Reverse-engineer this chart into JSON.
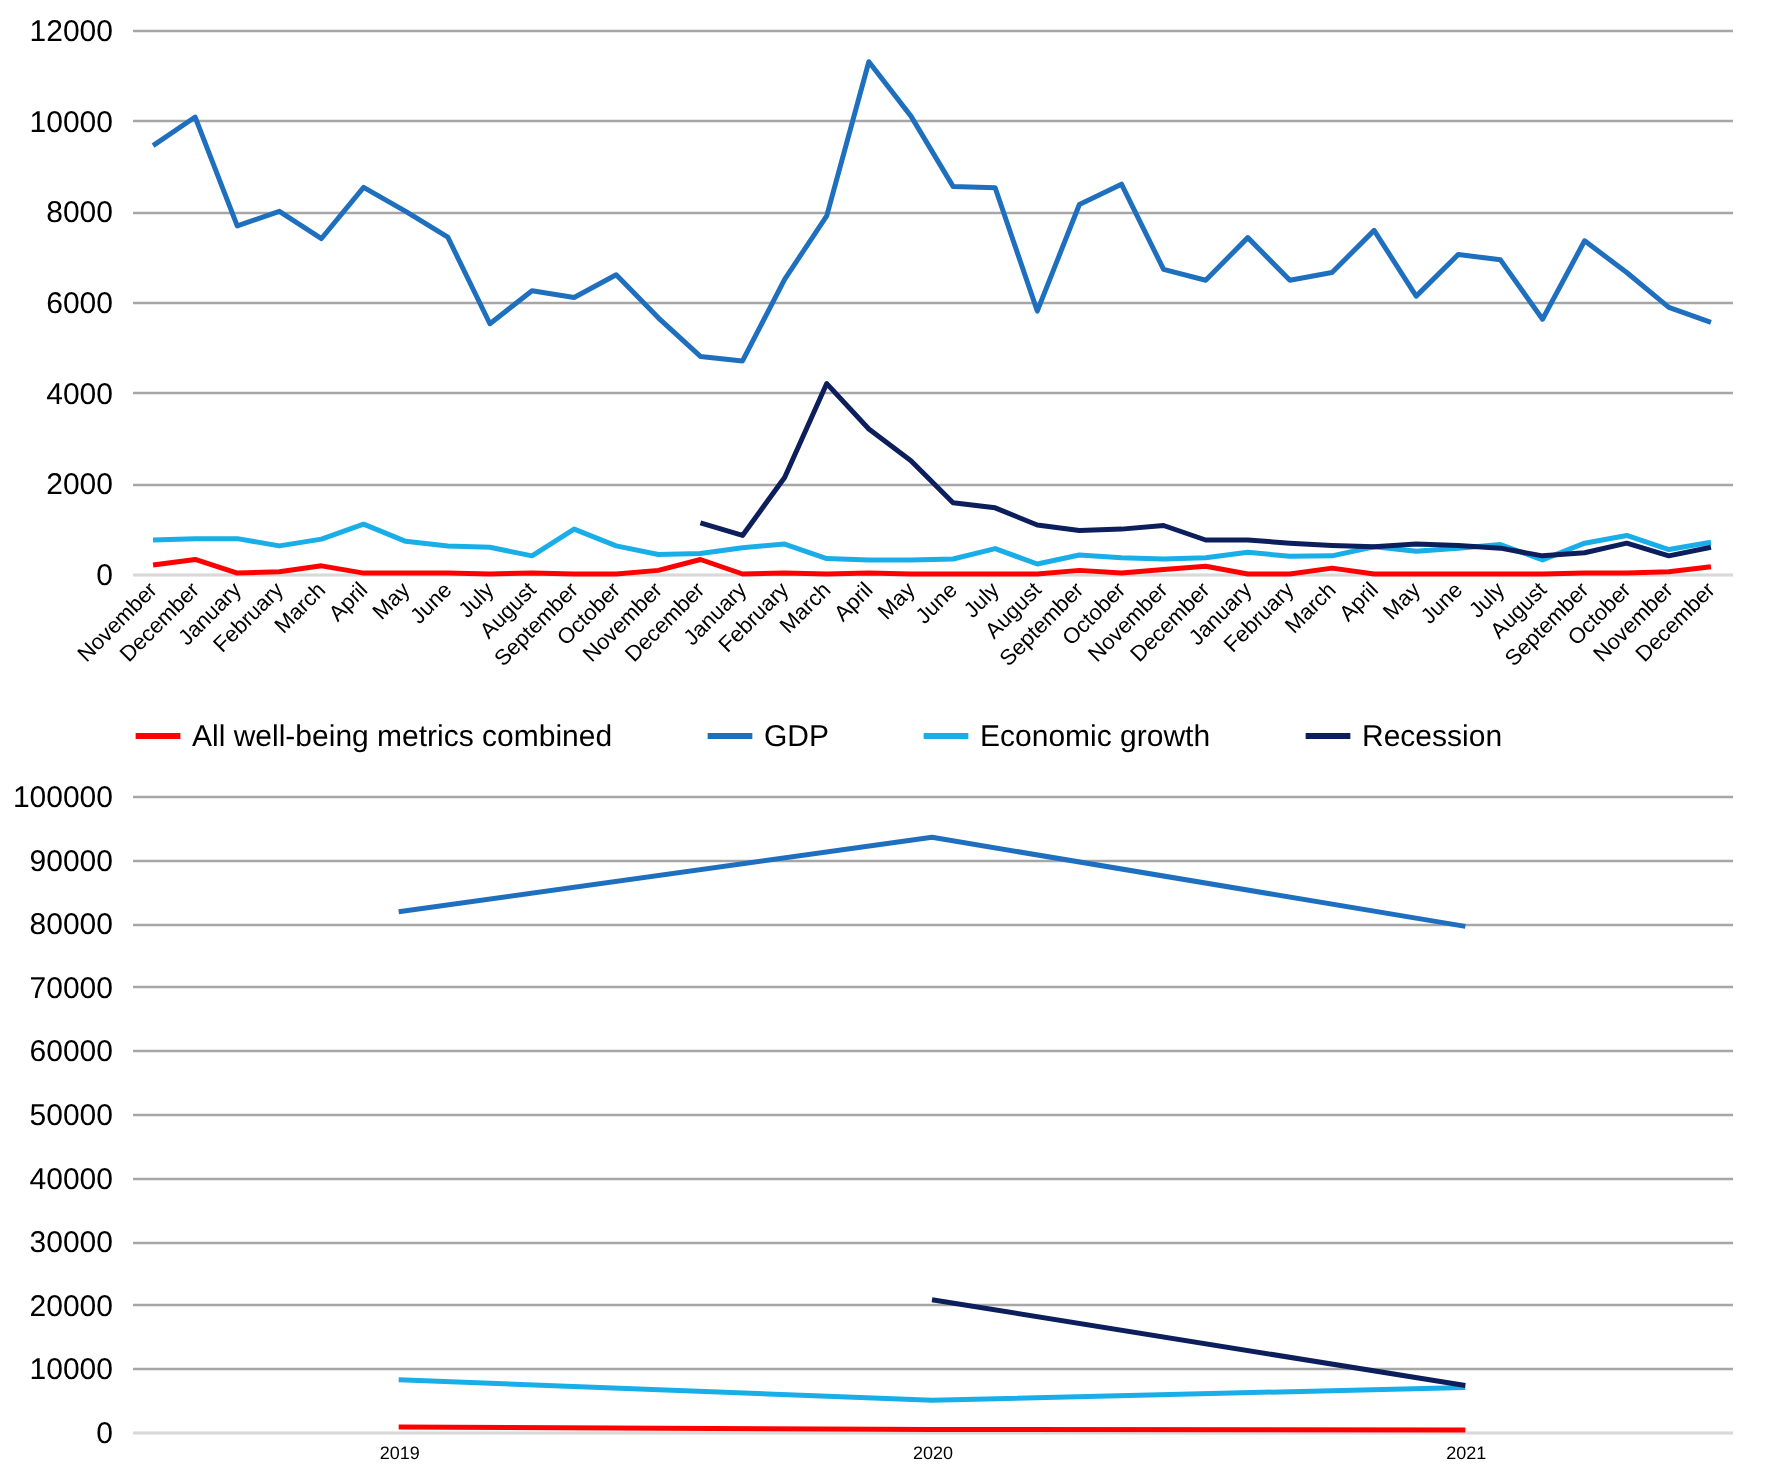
{
  "chart_data": [
    {
      "type": "line",
      "categories": [
        "November",
        "December",
        "January",
        "February",
        "March",
        "April",
        "May",
        "June",
        "July",
        "August",
        "September",
        "October",
        "November",
        "December",
        "January",
        "February",
        "March",
        "April",
        "May",
        "June",
        "July",
        "August",
        "September",
        "October",
        "November",
        "December",
        "January",
        "February",
        "March",
        "April",
        "May",
        "June",
        "July",
        "August",
        "September",
        "October",
        "November",
        "December"
      ],
      "series": [
        {
          "name": "All well-being metrics combined",
          "color": "#ff0000",
          "values": [
            200,
            320,
            20,
            50,
            180,
            20,
            20,
            20,
            0,
            20,
            0,
            0,
            80,
            320,
            0,
            20,
            0,
            20,
            0,
            0,
            0,
            0,
            80,
            20,
            100,
            170,
            0,
            0,
            130,
            0,
            0,
            0,
            0,
            0,
            20,
            20,
            50,
            160
          ]
        },
        {
          "name": "GDP",
          "color": "#1f6fbf",
          "values": [
            9450,
            10080,
            7680,
            8000,
            7400,
            8530,
            8000,
            7430,
            5520,
            6250,
            6100,
            6600,
            5650,
            4800,
            4700,
            6500,
            7900,
            11300,
            10100,
            8550,
            8520,
            5800,
            8150,
            8600,
            6720,
            6480,
            7420,
            6480,
            6650,
            7580,
            6130,
            7050,
            6930,
            5620,
            7350,
            6650,
            5880,
            5550
          ]
        },
        {
          "name": "Economic growth",
          "color": "#19aee8",
          "values": [
            750,
            780,
            780,
            620,
            770,
            1100,
            720,
            620,
            590,
            400,
            990,
            620,
            430,
            450,
            580,
            660,
            340,
            310,
            310,
            330,
            560,
            220,
            420,
            360,
            330,
            360,
            480,
            390,
            400,
            600,
            500,
            570,
            650,
            310,
            680,
            850,
            540,
            700
          ]
        },
        {
          "name": "Recession",
          "color": "#0c1e5b",
          "values": [
            null,
            null,
            null,
            null,
            null,
            null,
            null,
            null,
            null,
            null,
            null,
            null,
            null,
            1130,
            850,
            2130,
            4200,
            3200,
            2500,
            1570,
            1460,
            1080,
            960,
            990,
            1070,
            750,
            750,
            680,
            630,
            600,
            660,
            630,
            570,
            400,
            470,
            680,
            400,
            590
          ]
        }
      ],
      "ylim": [
        0,
        12000
      ],
      "yticks": [
        0,
        2000,
        4000,
        6000,
        8000,
        10000,
        12000
      ],
      "grid": "y",
      "legend": "bottom"
    },
    {
      "type": "line",
      "categories": [
        "2019",
        "2020",
        "2021"
      ],
      "series": [
        {
          "color": "#ff0000",
          "values": [
            800,
            400,
            300
          ]
        },
        {
          "color": "#1f6fbf",
          "values": [
            81800,
            93500,
            79500
          ]
        },
        {
          "color": "#19aee8",
          "values": [
            8200,
            5000,
            7000
          ]
        },
        {
          "color": "#0c1e5b",
          "values": [
            null,
            20800,
            7300
          ]
        }
      ],
      "ylim": [
        0,
        100000
      ],
      "yticks": [
        0,
        10000,
        20000,
        30000,
        40000,
        50000,
        60000,
        70000,
        80000,
        90000,
        100000
      ],
      "grid": "y"
    }
  ]
}
